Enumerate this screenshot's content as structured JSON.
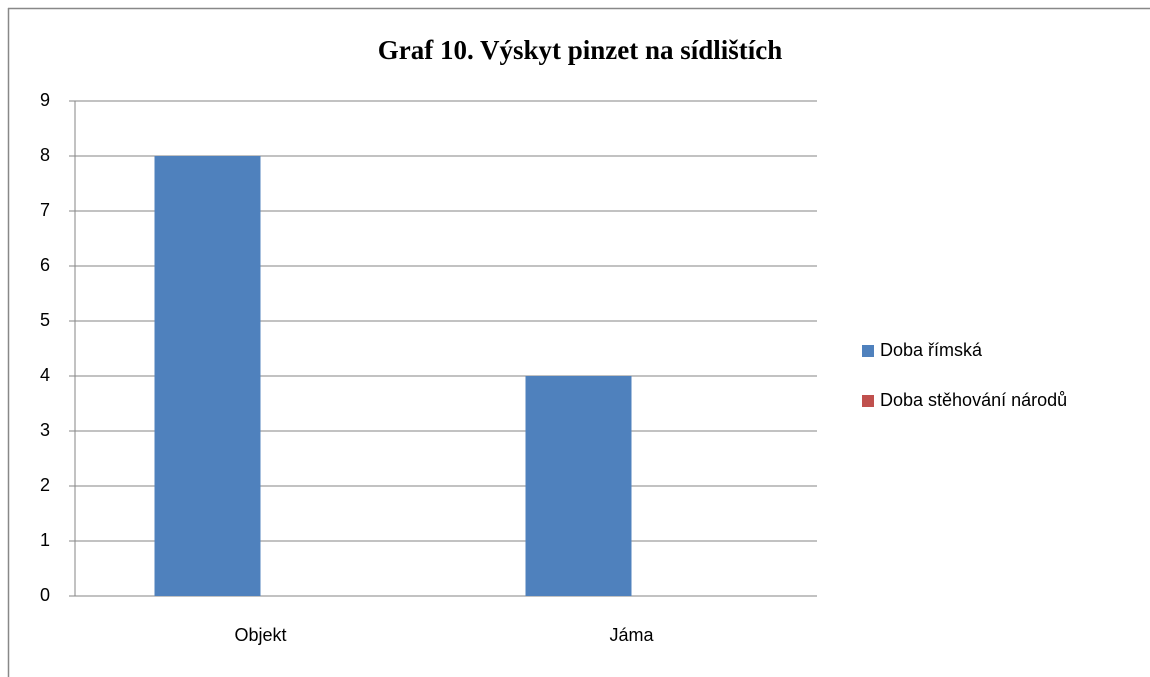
{
  "chart_data": {
    "type": "bar",
    "title": "Graf 10. Výskyt pinzet na sídlištích",
    "categories": [
      "Objekt",
      "Jáma"
    ],
    "series": [
      {
        "name": "Doba římská",
        "color": "#4f81bd",
        "values": [
          8,
          4
        ]
      },
      {
        "name": "Doba stěhování národů",
        "color": "#c0504d",
        "values": [
          0,
          0
        ]
      }
    ],
    "ylim": [
      0,
      9
    ],
    "yticks": [
      0,
      1,
      2,
      3,
      4,
      5,
      6,
      7,
      8,
      9
    ],
    "grid": true,
    "legend": "right"
  }
}
